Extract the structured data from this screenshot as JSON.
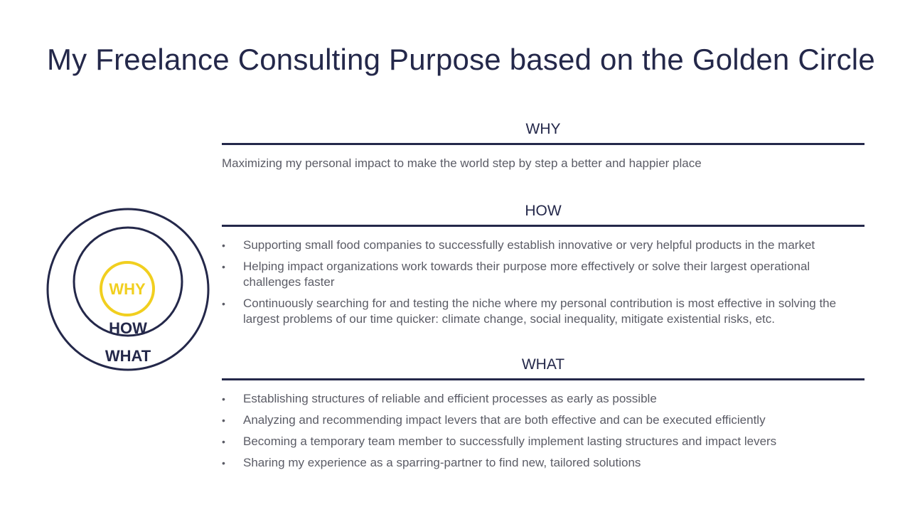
{
  "title": "My Freelance Consulting Purpose based on the Golden Circle",
  "circle": {
    "why": "WHY",
    "how": "HOW",
    "what": "WHAT",
    "colors": {
      "why": "#f1cf1f",
      "how": "#24284a",
      "what": "#24284a"
    }
  },
  "sections": {
    "why": {
      "heading": "WHY",
      "text": "Maximizing my personal impact to make the world step by step a better and happier place"
    },
    "how": {
      "heading": "HOW",
      "items": [
        "Supporting small food companies to successfully establish innovative or very helpful products in the market",
        "Helping impact organizations work towards their purpose more effectively or solve their largest operational challenges faster",
        "Continuously searching for and testing the niche where my personal contribution is most effective in solving the largest problems of our time quicker: climate change, social inequality, mitigate existential risks, etc."
      ]
    },
    "what": {
      "heading": "WHAT",
      "items": [
        "Establishing structures of reliable and efficient processes as early as possible",
        "Analyzing and recommending impact levers that are both effective and can be executed efficiently",
        "Becoming a temporary team member to successfully implement lasting structures and impact levers",
        "Sharing my experience as a sparring-partner to find new, tailored solutions"
      ]
    }
  }
}
